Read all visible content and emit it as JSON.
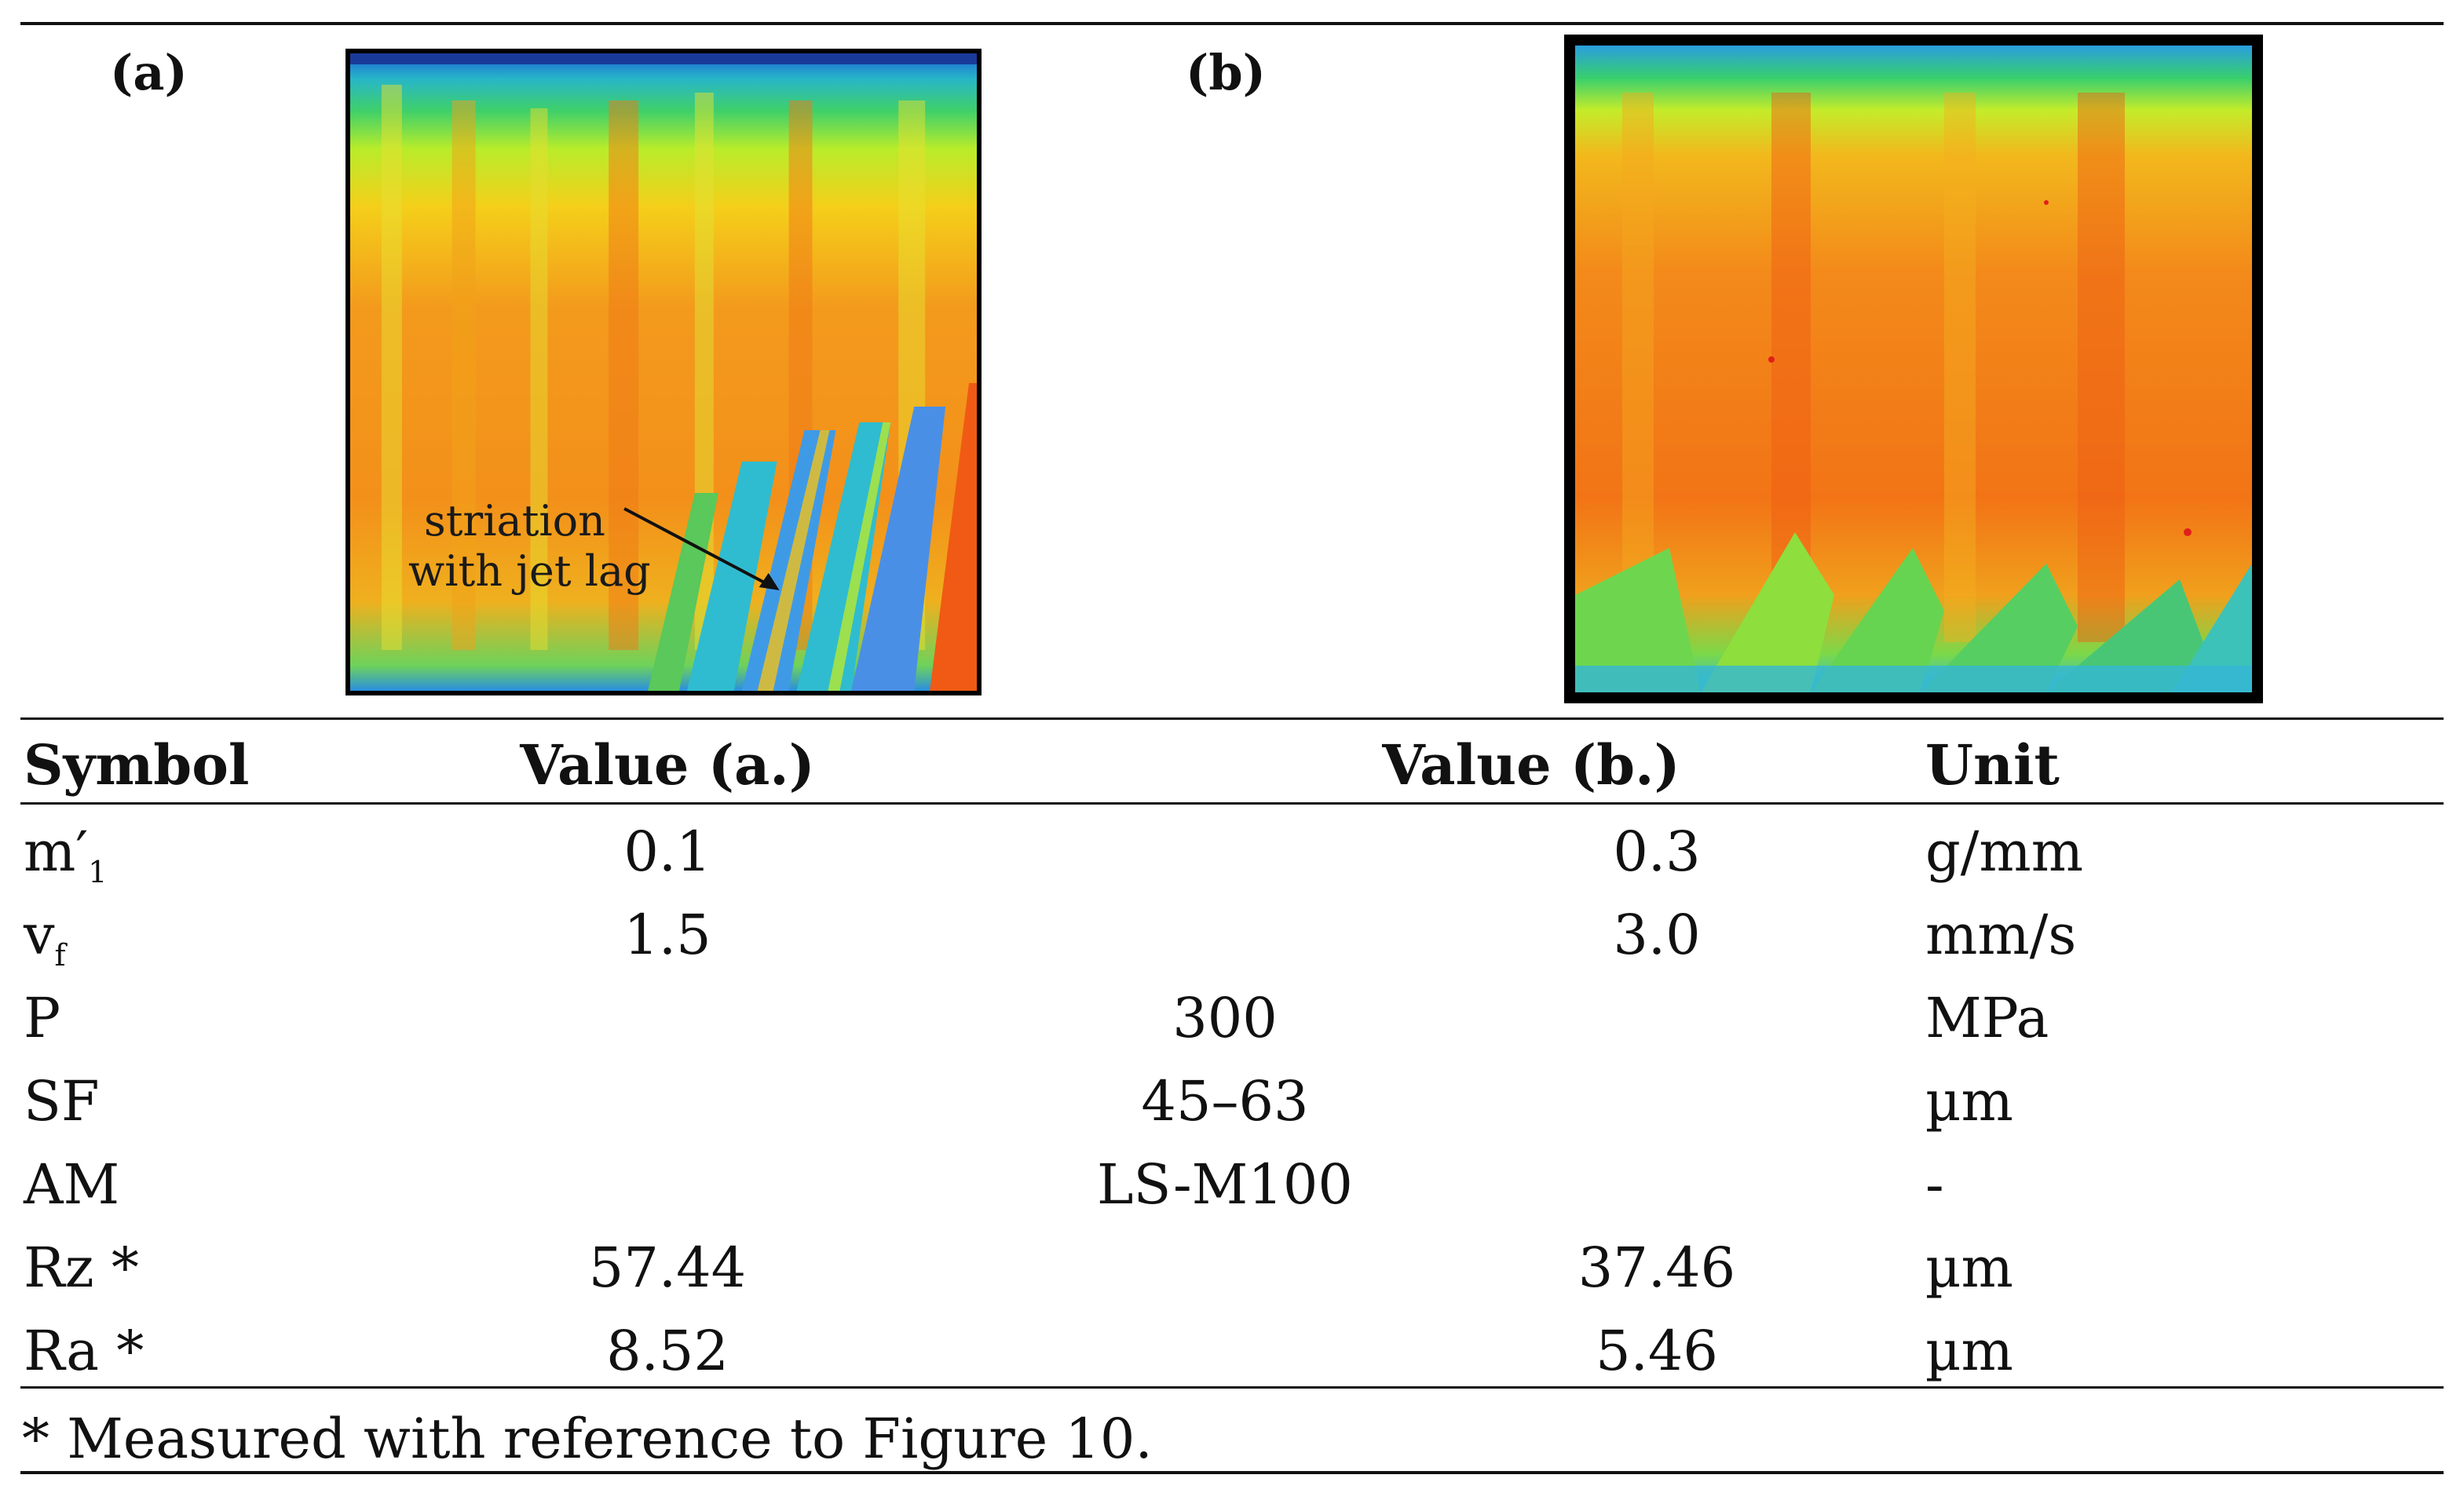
{
  "figure": {
    "panel_a": {
      "label": "(a)",
      "annotation_line1": "striation",
      "annotation_line2": "with jet lag"
    },
    "panel_b": {
      "label": "(b)"
    }
  },
  "table": {
    "headers": {
      "symbol": "Symbol",
      "value_a": "Value (a.)",
      "value_b": "Value (b.)",
      "unit": "Unit"
    },
    "rows": [
      {
        "symbol_main": "m′",
        "symbol_sub": "1",
        "value_a": "0.1",
        "value_b": "0.3",
        "unit": "g/mm"
      },
      {
        "symbol_main": "v",
        "symbol_sub": "f",
        "value_a": "1.5",
        "value_b": "3.0",
        "unit": "mm/s"
      },
      {
        "symbol": "P",
        "shared": "300",
        "unit": "MPa"
      },
      {
        "symbol": "SF",
        "shared": "45–63",
        "unit": "µm"
      },
      {
        "symbol": "AM",
        "shared": "LS-M100",
        "unit": "-"
      },
      {
        "symbol": "Rz *",
        "value_a": "57.44",
        "value_b": "37.46",
        "unit": "µm"
      },
      {
        "symbol": "Ra *",
        "value_a": "8.52",
        "value_b": "5.46",
        "unit": "µm"
      }
    ],
    "footnote": "* Measured with reference to Figure 10."
  }
}
